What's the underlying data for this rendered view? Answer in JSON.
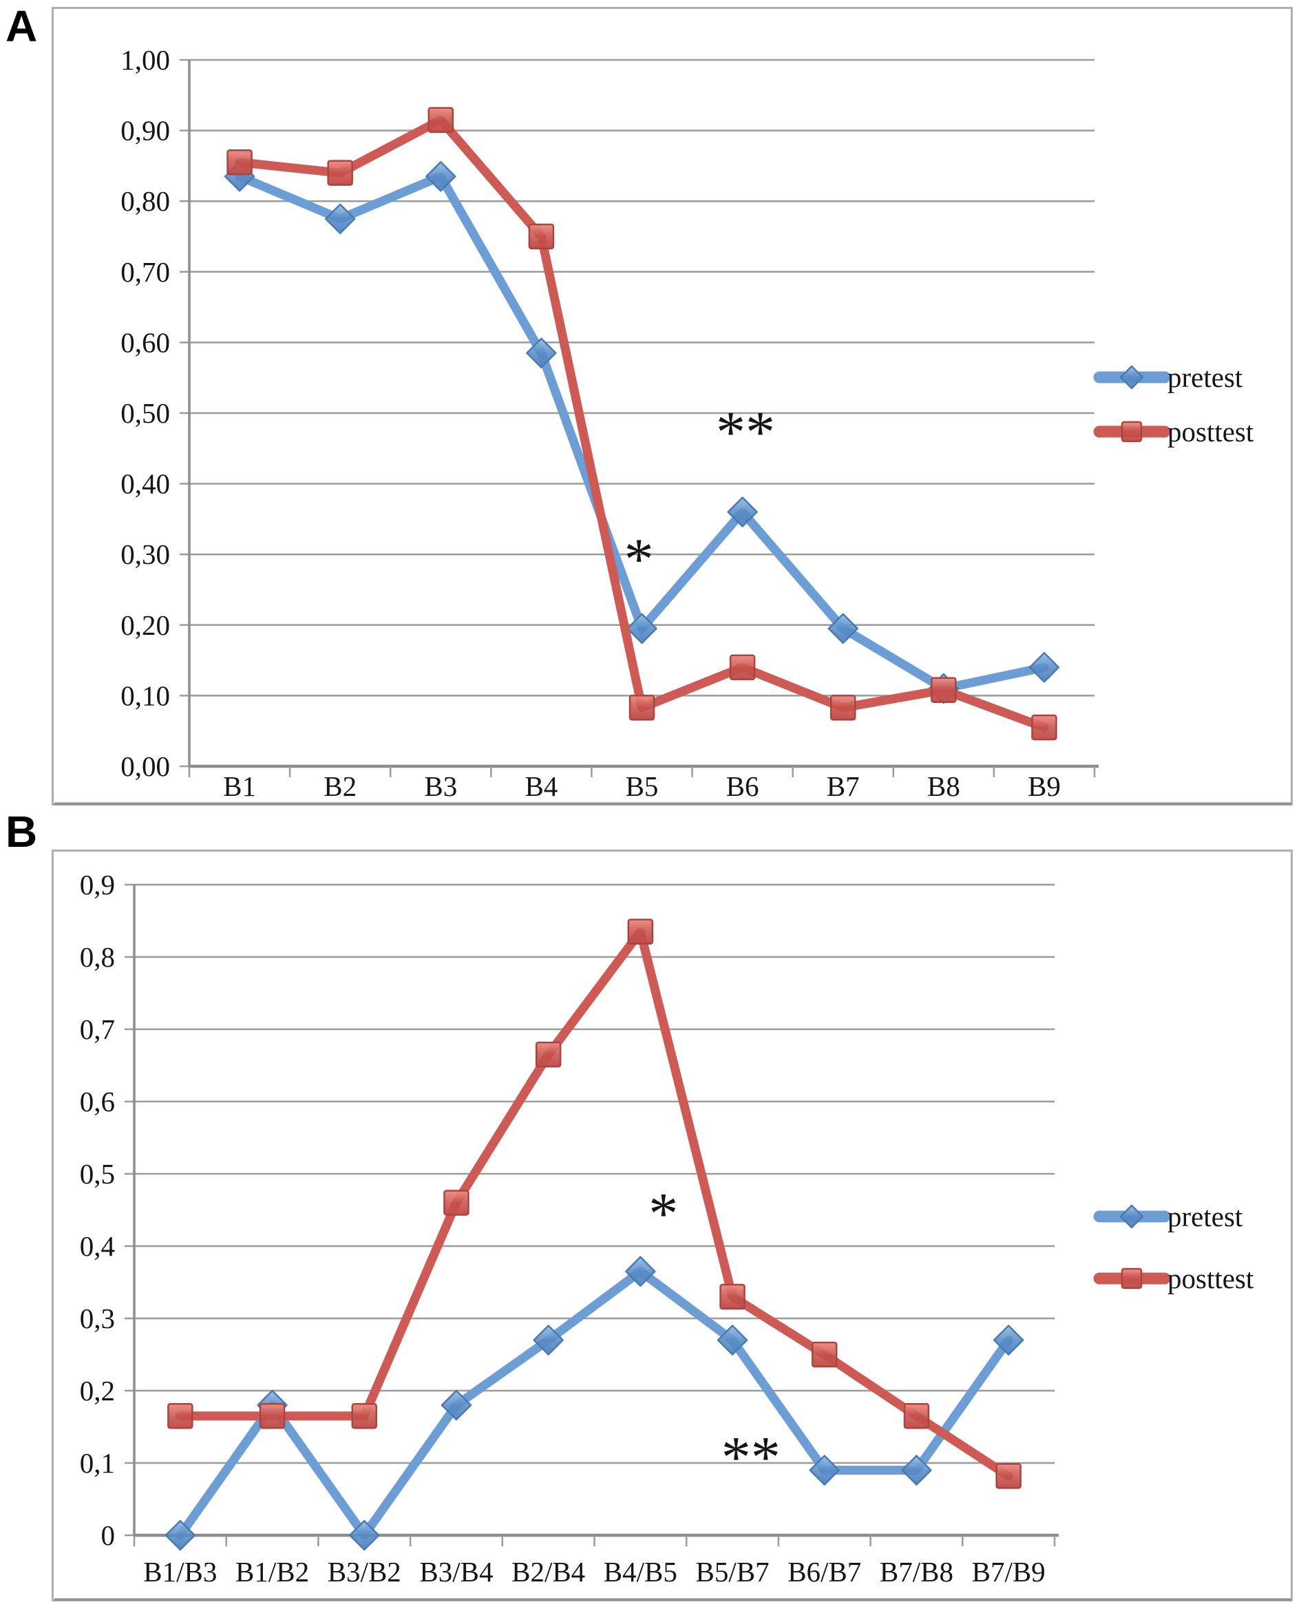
{
  "figure": {
    "panel_a_label": "A",
    "panel_b_label": "B",
    "legend": {
      "pretest": "pretest",
      "posttest": "posttest"
    },
    "colors": {
      "pretest_line": "#6D9DD5",
      "pretest_fill_light": "#9CC3EC",
      "pretest_fill_dark": "#5589C4",
      "pretest_edge": "#4B7AAF",
      "posttest_line": "#CD5A55",
      "posttest_fill_light": "#F09087",
      "posttest_fill_dark": "#C44F4A",
      "posttest_edge": "#A94540",
      "gridline": "#9B9B9B",
      "axis": "#8D8D8D",
      "panel_border": "#AFAFAF",
      "panel_shadow": "#919191",
      "annotation": "#000000"
    }
  },
  "chart_data": [
    {
      "panel": "A",
      "type": "line",
      "title": "",
      "xlabel": "",
      "ylabel": "",
      "grid": true,
      "legend_position": "right",
      "categories": [
        "B1",
        "B2",
        "B3",
        "B4",
        "B5",
        "B6",
        "B7",
        "B8",
        "B9"
      ],
      "series": [
        {
          "name": "pretest",
          "marker": "diamond",
          "values": [
            0.835,
            0.775,
            0.835,
            0.585,
            0.195,
            0.36,
            0.195,
            0.11,
            0.14
          ]
        },
        {
          "name": "posttest",
          "marker": "square",
          "values": [
            0.855,
            0.84,
            0.915,
            0.75,
            0.083,
            0.14,
            0.083,
            0.108,
            0.055
          ]
        }
      ],
      "ylim": [
        0,
        1.0
      ],
      "ytick_values": [
        0,
        0.1,
        0.2,
        0.3,
        0.4,
        0.5,
        0.6,
        0.7,
        0.8,
        0.9,
        1.0
      ],
      "ytick_labels": [
        "0,00",
        "0,10",
        "0,20",
        "0,30",
        "0,40",
        "0,50",
        "0,60",
        "0,70",
        "0,80",
        "0,90",
        "1,00"
      ],
      "annotations": [
        {
          "text": "*",
          "x_index": 3.97,
          "y": 0.3
        },
        {
          "text": "**",
          "x_index": 5.03,
          "y": 0.48
        }
      ]
    },
    {
      "panel": "B",
      "type": "line",
      "title": "",
      "xlabel": "",
      "ylabel": "",
      "grid": true,
      "legend_position": "right",
      "categories": [
        "B1/B3",
        "B1/B2",
        "B3/B2",
        "B3/B4",
        "B2/B4",
        "B4/B5",
        "B5/B7",
        "B6/B7",
        "B7/B8",
        "B7/B9"
      ],
      "series": [
        {
          "name": "pretest",
          "marker": "diamond",
          "values": [
            0.0,
            0.18,
            0.0,
            0.18,
            0.27,
            0.365,
            0.27,
            0.09,
            0.09,
            0.27
          ]
        },
        {
          "name": "posttest",
          "marker": "square",
          "values": [
            0.165,
            0.165,
            0.165,
            0.46,
            0.665,
            0.835,
            0.33,
            0.25,
            0.165,
            0.082
          ]
        }
      ],
      "ylim": [
        0,
        0.9
      ],
      "ytick_values": [
        0,
        0.1,
        0.2,
        0.3,
        0.4,
        0.5,
        0.6,
        0.7,
        0.8,
        0.9
      ],
      "ytick_labels": [
        "0",
        "0,1",
        "0,2",
        "0,3",
        "0,4",
        "0,5",
        "0,6",
        "0,7",
        "0,8",
        "0,9"
      ],
      "annotations": [
        {
          "text": "*",
          "x_index": 5.25,
          "y": 0.452
        },
        {
          "text": "**",
          "x_index": 6.2,
          "y": 0.115
        }
      ]
    }
  ]
}
